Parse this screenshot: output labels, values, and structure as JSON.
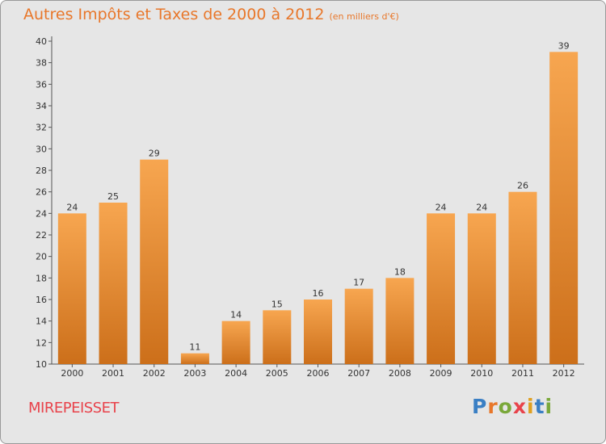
{
  "title": {
    "main": "Autres Impôts et Taxes de 2000 à 2012",
    "unit": "(en milliers d'€)"
  },
  "place_name": "MIREPEISSET",
  "logo": {
    "text": "Proxiti"
  },
  "colors": {
    "background": "#e6e6e6",
    "bar_top": "#f7a650",
    "bar_bottom": "#cc6f1a",
    "title": "#e8772a",
    "place": "#e8434b"
  },
  "chart_data": {
    "type": "bar",
    "title": "Autres Impôts et Taxes de 2000 à 2012",
    "subtitle": "(en milliers d'€)",
    "xlabel": "",
    "ylabel": "",
    "categories": [
      "2000",
      "2001",
      "2002",
      "2003",
      "2004",
      "2005",
      "2006",
      "2007",
      "2008",
      "2009",
      "2010",
      "2011",
      "2012"
    ],
    "values": [
      24,
      25,
      29,
      11,
      14,
      15,
      16,
      17,
      18,
      24,
      24,
      26,
      39
    ],
    "ylim": [
      10,
      40
    ],
    "yticks": [
      10,
      12,
      14,
      16,
      18,
      20,
      22,
      24,
      26,
      28,
      30,
      32,
      34,
      36,
      38,
      40
    ],
    "grid": false,
    "data_labels": true
  }
}
